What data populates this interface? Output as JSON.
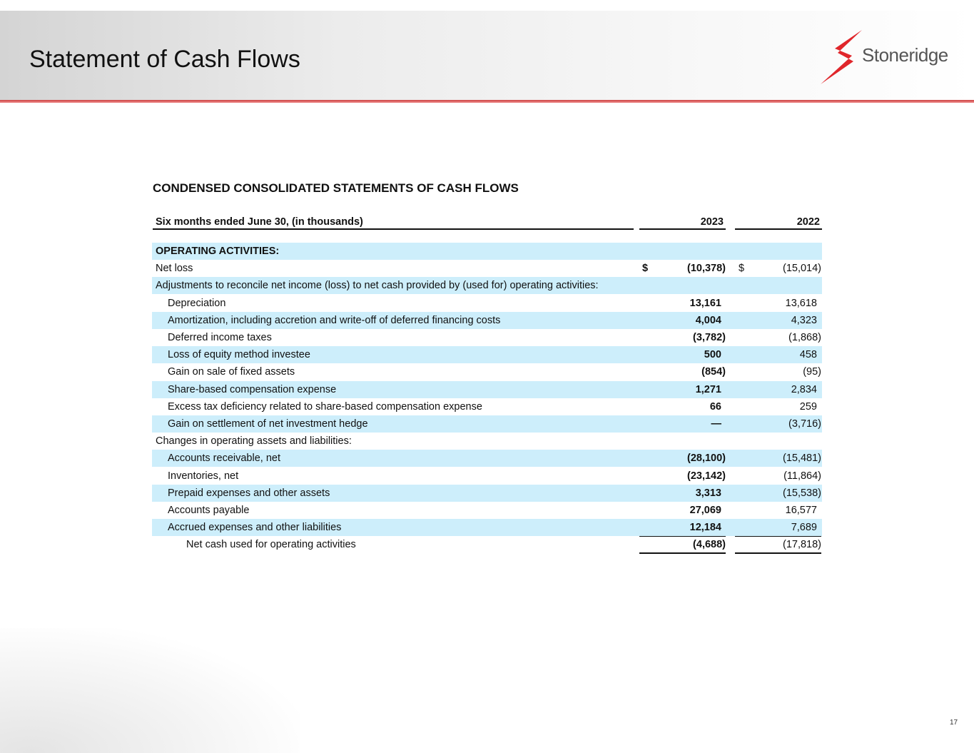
{
  "header": {
    "title": "Statement of Cash Flows",
    "logo": "Stoneridge"
  },
  "table": {
    "title": "CONDENSED CONSOLIDATED STATEMENTS OF CASH FLOWS",
    "columns": [
      "Six months ended June 30, (in thousands)",
      "2023",
      "2022"
    ],
    "rows": [
      {
        "label": "OPERATING ACTIVITIES:"
      },
      {
        "label": "Net loss",
        "currency": "$",
        "v2023": "(10,378)",
        "v2022": "(15,014)"
      },
      {
        "label": "Adjustments to reconcile net income (loss) to net cash provided by (used for) operating activities:"
      },
      {
        "label": "Depreciation",
        "v2023": "13,161",
        "v2022": "13,618"
      },
      {
        "label": "Amortization, including accretion and write-off of deferred financing costs",
        "v2023": "4,004",
        "v2022": "4,323"
      },
      {
        "label": "Deferred income taxes",
        "v2023": "(3,782)",
        "v2022": "(1,868)"
      },
      {
        "label": "Loss of equity method investee",
        "v2023": "500",
        "v2022": "458"
      },
      {
        "label": "Gain on sale of fixed assets",
        "v2023": "(854)",
        "v2022": "(95)"
      },
      {
        "label": "Share-based compensation expense",
        "v2023": "1,271",
        "v2022": "2,834"
      },
      {
        "label": "Excess tax deficiency related to share-based compensation expense",
        "v2023": "66",
        "v2022": "259"
      },
      {
        "label": "Gain on settlement of net investment hedge",
        "v2023": "—",
        "v2022": "(3,716)"
      },
      {
        "label": "Changes in operating assets and liabilities:"
      },
      {
        "label": "Accounts receivable, net",
        "v2023": "(28,100)",
        "v2022": "(15,481)"
      },
      {
        "label": "Inventories, net",
        "v2023": "(23,142)",
        "v2022": "(11,864)"
      },
      {
        "label": "Prepaid expenses and other assets",
        "v2023": "3,313",
        "v2022": "(15,538)"
      },
      {
        "label": "Accounts payable",
        "v2023": "27,069",
        "v2022": "16,577"
      },
      {
        "label": "Accrued expenses and other liabilities",
        "v2023": "12,184",
        "v2022": "7,689"
      },
      {
        "label": "Net cash used for operating activities",
        "v2023": "(4,688)",
        "v2022": "(17,818)"
      }
    ]
  },
  "footer": {
    "page": "17"
  }
}
